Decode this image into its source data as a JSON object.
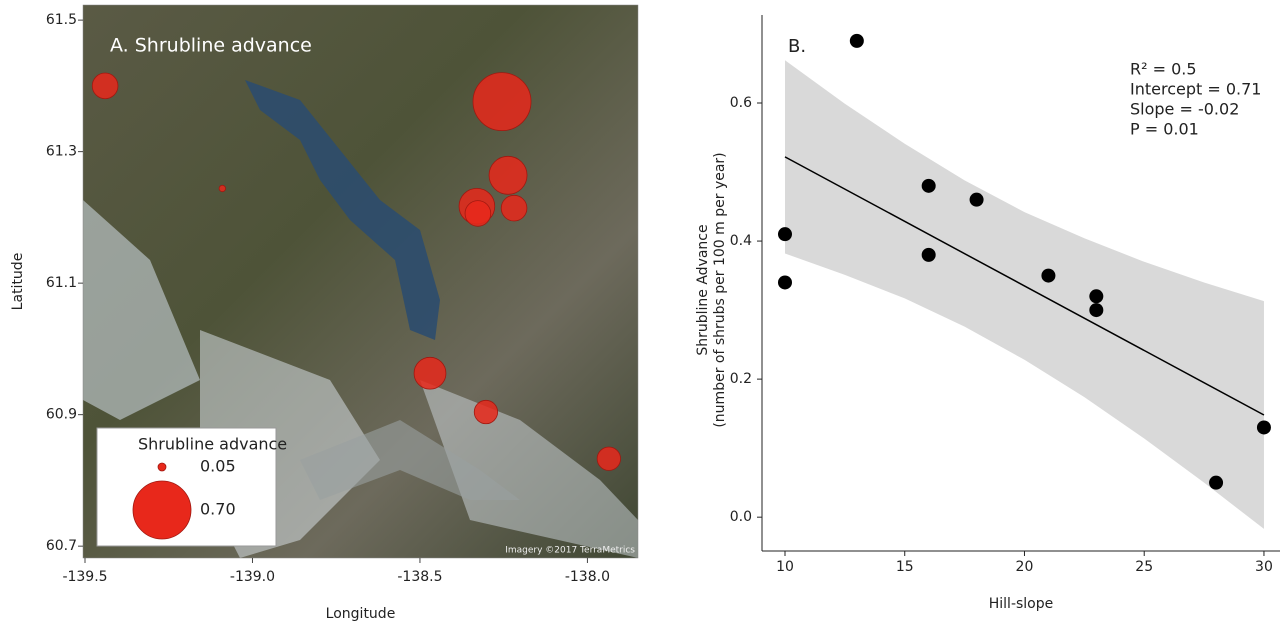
{
  "chart_data": [
    {
      "type": "bubble_map",
      "annotation": "A. Shrubline advance",
      "credit": "Imagery ©2017 TerraMetrics",
      "x_label": "Longitude",
      "y_label": "Latitude",
      "xlim": [
        -139.506,
        -137.849
      ],
      "ylim": [
        60.682,
        61.523
      ],
      "xticks": [
        -139.5,
        {
          "value": -139,
          "label": "-139.0"
        },
        -138.5,
        {
          "value": -138,
          "label": "-138.0"
        }
      ],
      "yticks": [
        60.7,
        60.9,
        61.1,
        61.3,
        61.5
      ],
      "size_legend": {
        "title": "Shrubline advance",
        "values": [
          0.05,
          {
            "value": 0.7,
            "label": "0.70"
          }
        ]
      },
      "color": "#e8281b",
      "x": [
        -139.44,
        -139.09,
        -138.255,
        -138.237,
        -138.33,
        -138.327,
        -138.219,
        -138.47,
        -138.303,
        -137.936
      ],
      "y": [
        61.4,
        61.244,
        61.376,
        61.264,
        61.217,
        61.206,
        61.214,
        60.963,
        60.904,
        60.833
      ],
      "size": [
        0.28,
        0.03,
        0.7,
        0.44,
        0.41,
        0.28,
        0.28,
        0.36,
        0.25,
        0.25
      ]
    },
    {
      "type": "scatter",
      "annotation": "B.",
      "stats": [
        "R² = 0.5",
        "Intercept = 0.71",
        "Slope = -0.02",
        "P = 0.01"
      ],
      "x_label": "Hill-slope",
      "y_label": [
        "Shrubline Advance",
        "(number of shrubs per 100 m per year)"
      ],
      "xlim": [
        9.04,
        30.67
      ],
      "ylim": [
        -0.049,
        0.7275
      ],
      "xticks": [
        10,
        15,
        20,
        25,
        30
      ],
      "yticks": [
        {
          "value": 0,
          "label": "0.0"
        },
        0.2,
        0.4,
        0.6
      ],
      "color": "#000000",
      "x": [
        10,
        10,
        13,
        16,
        16,
        18,
        21,
        23,
        23,
        28,
        30
      ],
      "y": [
        0.41,
        0.34,
        0.69,
        0.48,
        0.38,
        0.46,
        0.35,
        0.32,
        0.3,
        0.05,
        0.13
      ],
      "fit": {
        "x": [
          10,
          30
        ],
        "y": [
          0.522,
          0.148
        ],
        "color": "#000000"
      },
      "band": {
        "x": [
          10,
          12.5,
          15,
          17.5,
          20,
          22.5,
          25,
          27.5,
          30
        ],
        "upper": [
          0.662,
          0.599,
          0.541,
          0.488,
          0.442,
          0.404,
          0.37,
          0.34,
          0.313
        ],
        "lower": [
          0.382,
          0.351,
          0.317,
          0.276,
          0.228,
          0.174,
          0.114,
          0.05,
          -0.017
        ],
        "color": "#d9d9d9"
      }
    }
  ]
}
